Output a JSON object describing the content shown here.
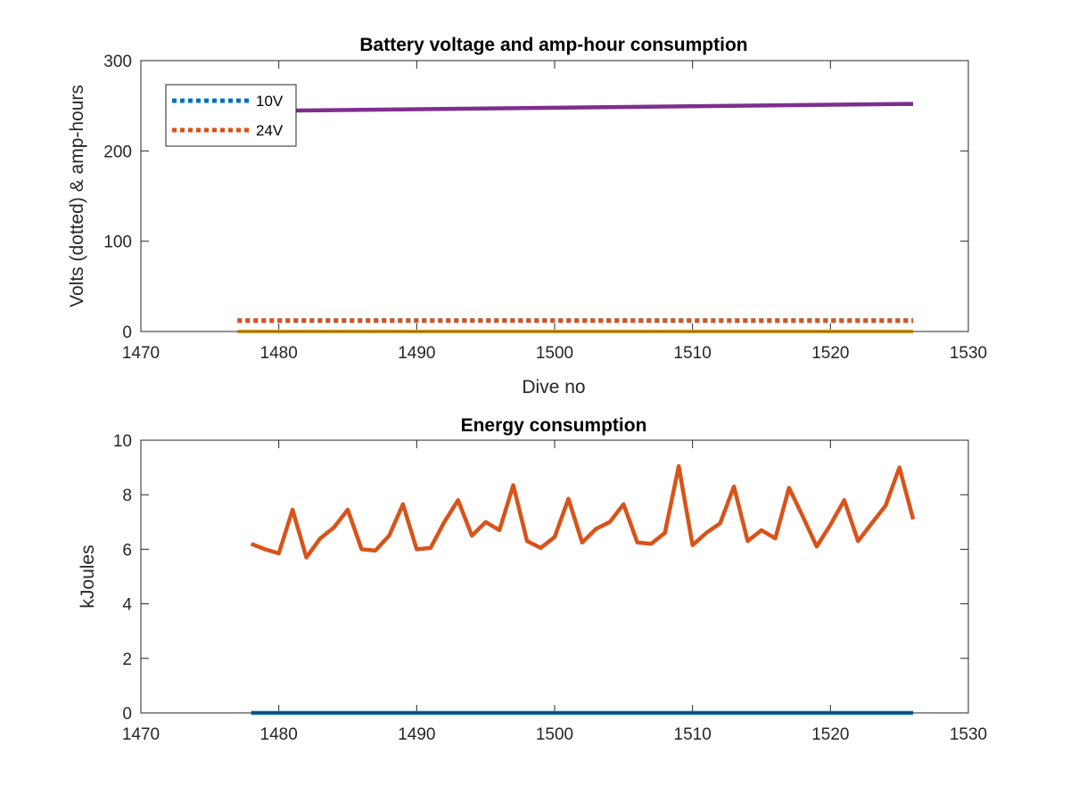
{
  "chart_data": [
    {
      "type": "line",
      "title": "Battery voltage and amp-hour consumption",
      "xlabel": "Dive no",
      "ylabel": "Volts (dotted) & amp-hours",
      "xlim": [
        1470,
        1530
      ],
      "ylim": [
        0,
        300
      ],
      "xticks": [
        1470,
        1480,
        1490,
        1500,
        1510,
        1520,
        1530
      ],
      "yticks": [
        0,
        100,
        200,
        300
      ],
      "grid": false,
      "legend": {
        "placement": "top-left"
      },
      "series": [
        {
          "name": "10V",
          "style": "dotted",
          "color": "#0072BD",
          "x": [
            1477,
            1526
          ],
          "y": [
            12,
            12
          ]
        },
        {
          "name": "24V",
          "style": "dotted",
          "color": "#D95319",
          "x": [
            1477,
            1526
          ],
          "y": [
            12,
            12
          ]
        },
        {
          "style": "solid",
          "color": "#EDB120",
          "x": [
            1477,
            1526
          ],
          "y": [
            0,
            0
          ]
        },
        {
          "style": "solid",
          "color": "#7E2F8E",
          "x": [
            1477,
            1526
          ],
          "y": [
            244,
            252
          ]
        }
      ]
    },
    {
      "type": "line",
      "title": "Energy consumption",
      "xlabel": "",
      "ylabel": "kJoules",
      "xlim": [
        1470,
        1530
      ],
      "ylim": [
        0,
        10
      ],
      "xticks": [
        1470,
        1480,
        1490,
        1500,
        1510,
        1520,
        1530
      ],
      "yticks": [
        0,
        2,
        4,
        6,
        8,
        10
      ],
      "grid": false,
      "series": [
        {
          "style": "solid",
          "color": "#0072BD",
          "x": [
            1478,
            1526
          ],
          "y": [
            0,
            0
          ]
        },
        {
          "style": "solid",
          "color": "#D95319",
          "x": [
            1478,
            1479,
            1480,
            1481,
            1482,
            1483,
            1484,
            1485,
            1486,
            1487,
            1488,
            1489,
            1490,
            1491,
            1492,
            1493,
            1494,
            1495,
            1496,
            1497,
            1498,
            1499,
            1500,
            1501,
            1502,
            1503,
            1504,
            1505,
            1506,
            1507,
            1508,
            1509,
            1510,
            1511,
            1512,
            1513,
            1514,
            1515,
            1516,
            1517,
            1518,
            1519,
            1520,
            1521,
            1522,
            1523,
            1524,
            1525,
            1526
          ],
          "y": [
            6.2,
            6.0,
            5.85,
            7.45,
            5.7,
            6.4,
            6.8,
            7.45,
            6.0,
            5.95,
            6.5,
            7.65,
            6.0,
            6.05,
            7.0,
            7.8,
            6.5,
            7.0,
            6.7,
            8.35,
            6.3,
            6.05,
            6.45,
            7.85,
            6.25,
            6.75,
            7.0,
            7.65,
            6.25,
            6.2,
            6.6,
            9.05,
            6.15,
            6.6,
            6.95,
            8.3,
            6.3,
            6.7,
            6.4,
            8.25,
            7.2,
            6.1,
            6.9,
            7.8,
            6.3,
            6.95,
            7.6,
            9.0,
            7.1
          ]
        }
      ]
    }
  ]
}
